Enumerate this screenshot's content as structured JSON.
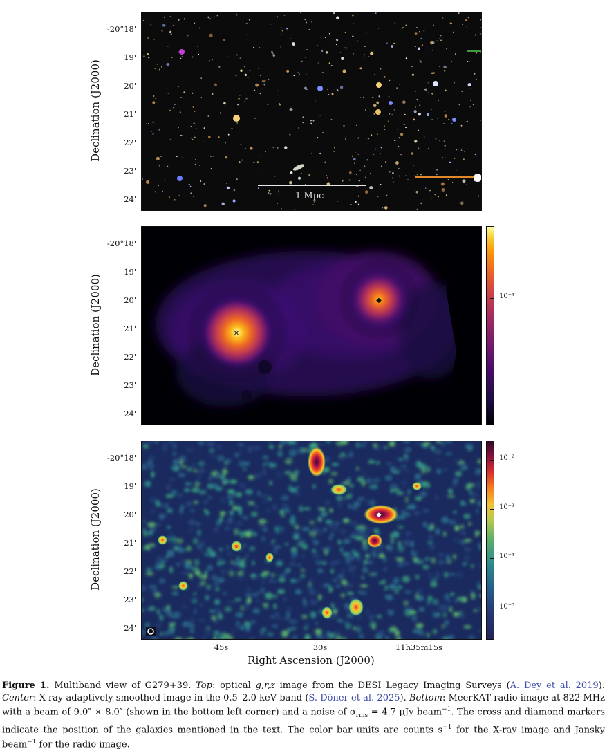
{
  "figure": {
    "ylabel": "Declination (J2000)",
    "xlabel": "Right Ascension (J2000)",
    "dec_ticks": [
      "-20°18'",
      "19'",
      "20'",
      "21'",
      "22'",
      "23'",
      "24'"
    ],
    "ra_ticks": [
      "45s",
      "30s",
      "11h35m15s"
    ],
    "scale_bar_label": "1 Mpc",
    "xray_cbar_ticks": [
      "10⁻⁴"
    ],
    "radio_cbar_ticks": [
      "10⁻²",
      "10⁻³",
      "10⁻⁴",
      "10⁻⁵"
    ],
    "colors": {
      "optical_bg": "#0b0b0c",
      "xray_peak": "#fcffa4",
      "radio_bg": "#1a2a5e"
    }
  },
  "caption": {
    "label": "Figure 1.",
    "part1": " Multiband view of G279+39. ",
    "top_word": "Top",
    "part2": ": optical ",
    "bands": "g,r,z",
    "part3": " image from the DESI Legacy Imaging Surveys (",
    "cite1": "A. Dey et al. 2019",
    "part4": "). ",
    "center_word": "Center",
    "part5": ": X-ray adaptively smoothed image in the 0.5–2.0 keV band (",
    "cite2": "S. Döner et al. 2025",
    "part6": "). ",
    "bottom_word": "Bottom",
    "part7": ": MeerKAT radio image at 822 MHz with a beam of 9.0″ × 8.0″ (shown in the bottom left corner) and a noise of σ",
    "rms": "rms",
    "part8": " = 4.7 μJy beam",
    "exp1": "−1",
    "part9": ". The cross and diamond markers indicate the position of the galaxies mentioned in the text. The color bar units are counts s",
    "exp2": "−1",
    "part10": " for the X-ray image and Jansky beam",
    "exp3": "−1",
    "part11": " for the radio image."
  }
}
